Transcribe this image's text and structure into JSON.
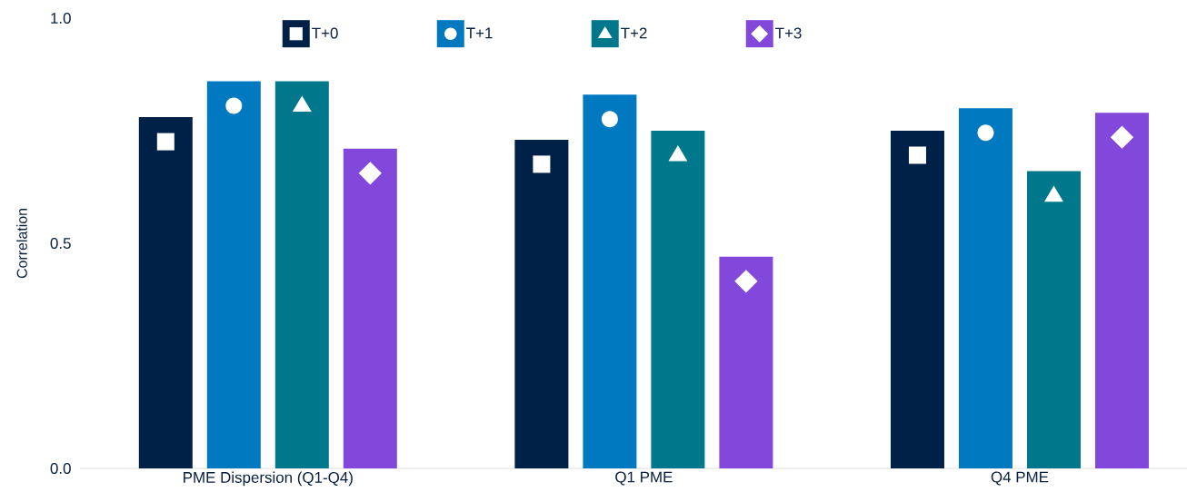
{
  "chart_data": {
    "type": "bar",
    "ylabel": "Correlation",
    "categories": [
      "PME Dispersion (Q1-Q4)",
      "Q1 PME",
      "Q4 PME"
    ],
    "series": [
      {
        "name": "T+0",
        "color": "#002147",
        "marker": "square",
        "values": [
          0.78,
          0.73,
          0.75
        ]
      },
      {
        "name": "T+1",
        "color": "#0079c1",
        "marker": "circle",
        "values": [
          0.86,
          0.83,
          0.8
        ]
      },
      {
        "name": "T+2",
        "color": "#00778b",
        "marker": "triangle",
        "values": [
          0.86,
          0.75,
          0.66
        ]
      },
      {
        "name": "T+3",
        "color": "#8247db",
        "marker": "diamond",
        "values": [
          0.71,
          0.47,
          0.79
        ]
      }
    ],
    "ylim": [
      0,
      1
    ],
    "yticks": [
      {
        "value": 0,
        "label": "0.0"
      },
      {
        "value": 0.5,
        "label": "0.5"
      },
      {
        "value": 1,
        "label": "1.0"
      }
    ],
    "grid": false,
    "legend": "top"
  }
}
